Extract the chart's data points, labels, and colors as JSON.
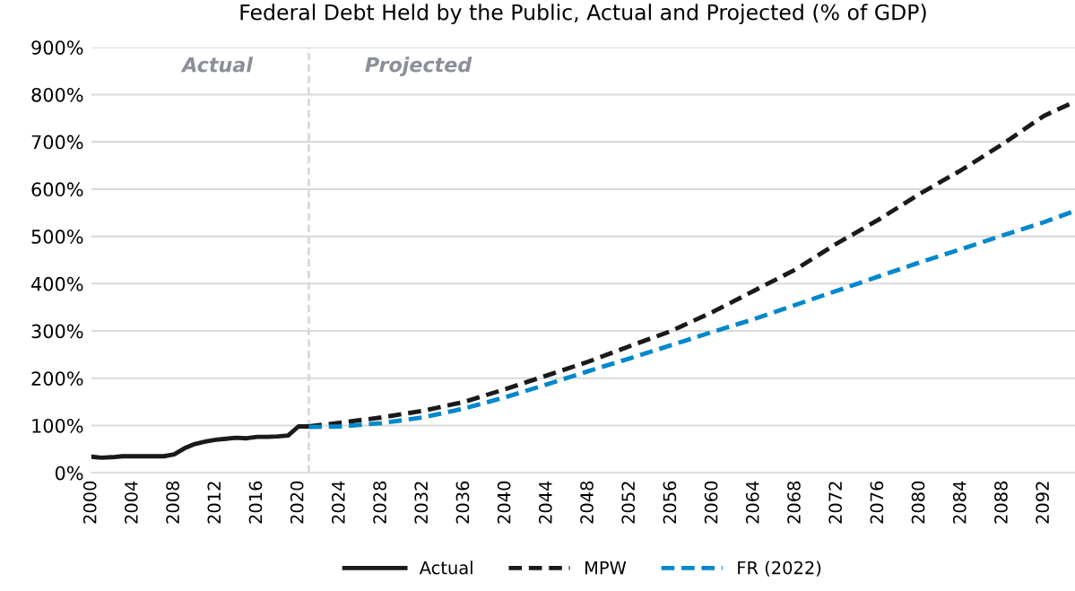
{
  "chart_data": {
    "type": "line",
    "title": "Federal Debt Held by the Public, Actual and Projected (% of GDP)",
    "series": [
      {
        "name": "Actual",
        "color": "#1a1a1a",
        "line_style": "solid",
        "x": [
          2000,
          2001,
          2002,
          2003,
          2004,
          2005,
          2006,
          2007,
          2008,
          2009,
          2010,
          2011,
          2012,
          2013,
          2014,
          2015,
          2016,
          2017,
          2018,
          2019,
          2020,
          2021
        ],
        "values": [
          34,
          32,
          33,
          35,
          35,
          35,
          35,
          35,
          39,
          52,
          61,
          66,
          70,
          72,
          74,
          73,
          76,
          76,
          77,
          79,
          98,
          98
        ]
      },
      {
        "name": "MPW",
        "color": "#1a1a1a",
        "line_style": "dashed",
        "x": [
          2021,
          2024,
          2028,
          2032,
          2036,
          2040,
          2044,
          2048,
          2052,
          2056,
          2060,
          2064,
          2068,
          2072,
          2076,
          2080,
          2084,
          2088,
          2092,
          2095
        ],
        "values": [
          98,
          106,
          117,
          131,
          150,
          177,
          206,
          235,
          268,
          300,
          340,
          385,
          430,
          485,
          535,
          590,
          640,
          695,
          755,
          785
        ]
      },
      {
        "name": "FR (2022)",
        "color": "#0088cc",
        "line_style": "dashed",
        "x": [
          2021,
          2024,
          2028,
          2032,
          2036,
          2040,
          2044,
          2048,
          2052,
          2056,
          2060,
          2064,
          2068,
          2072,
          2076,
          2080,
          2084,
          2088,
          2092,
          2095
        ],
        "values": [
          97,
          98,
          105,
          117,
          136,
          160,
          187,
          215,
          242,
          270,
          298,
          325,
          355,
          385,
          415,
          445,
          473,
          502,
          530,
          554
        ]
      }
    ],
    "xlim": [
      2000,
      2095
    ],
    "xticks": [
      2000,
      2004,
      2008,
      2012,
      2016,
      2020,
      2024,
      2028,
      2032,
      2036,
      2040,
      2044,
      2048,
      2052,
      2056,
      2060,
      2064,
      2068,
      2072,
      2076,
      2080,
      2084,
      2088,
      2092
    ],
    "ylim": [
      0,
      900
    ],
    "yticks": [
      {
        "value": 0,
        "label": "0%"
      },
      {
        "value": 100,
        "label": "100%"
      },
      {
        "value": 200,
        "label": "200%"
      },
      {
        "value": 300,
        "label": "300%"
      },
      {
        "value": 400,
        "label": "400%"
      },
      {
        "value": 500,
        "label": "500%"
      },
      {
        "value": 600,
        "label": "600%"
      },
      {
        "value": 700,
        "label": "700%"
      },
      {
        "value": 800,
        "label": "800%"
      },
      {
        "value": 900,
        "label": "900%"
      }
    ],
    "grid": "y",
    "legend": "bottom",
    "marker": "none",
    "ref_lines": [
      {
        "axis": "x",
        "value": 2021,
        "color": "#d9d9d9",
        "line_style": "dashed"
      }
    ],
    "annotations": [
      "Actual",
      "Projected"
    ]
  }
}
